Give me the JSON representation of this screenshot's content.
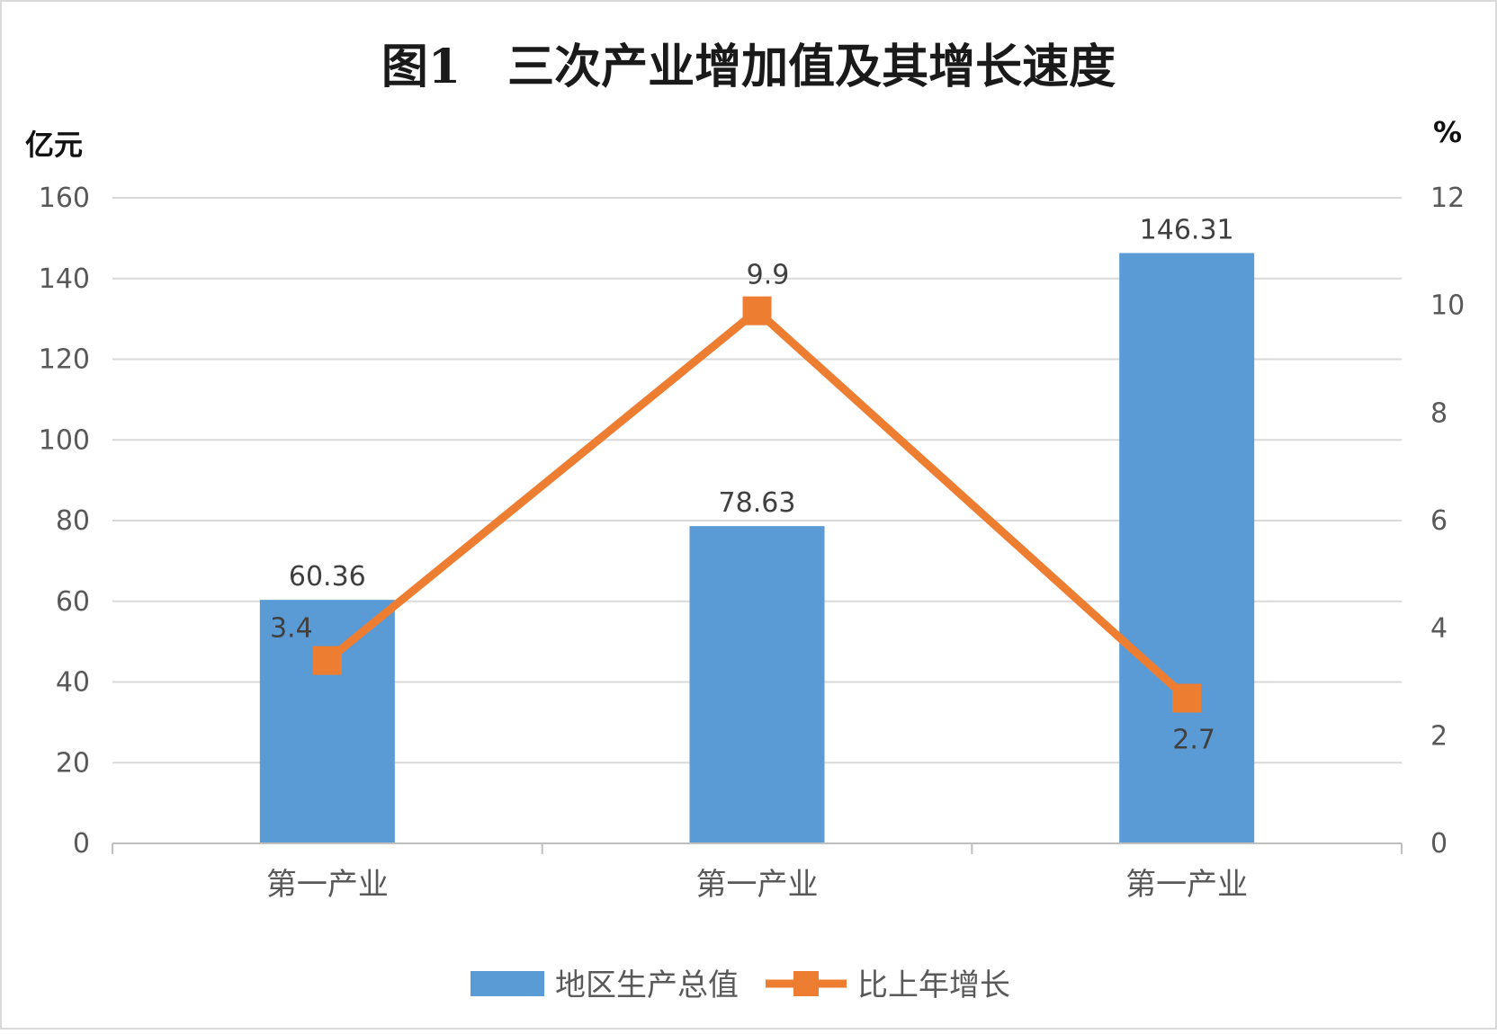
{
  "chart_data": {
    "type": "bar",
    "title": "图1　三次产业增加值及其增长速度",
    "categories": [
      "第一产业",
      "第一产业",
      "第一产业"
    ],
    "series": [
      {
        "name": "地区生产总值",
        "type": "bar",
        "axis": "left",
        "values": [
          60.36,
          78.63,
          146.31
        ],
        "color": "#5B9BD5"
      },
      {
        "name": "比上年增长",
        "type": "line",
        "axis": "right",
        "values": [
          3.4,
          9.9,
          2.7
        ],
        "color": "#ED7D31"
      }
    ],
    "ylabel": "亿元",
    "ylabel_right": "%",
    "ylim": [
      0,
      160
    ],
    "ylim_right": [
      0,
      12
    ],
    "yticks": [
      "0",
      "20",
      "40",
      "60",
      "80",
      "100",
      "120",
      "140",
      "160"
    ],
    "yticks_right": [
      "0",
      "2",
      "4",
      "6",
      "8",
      "10",
      "12"
    ],
    "grid": true,
    "legend": "bottom"
  }
}
